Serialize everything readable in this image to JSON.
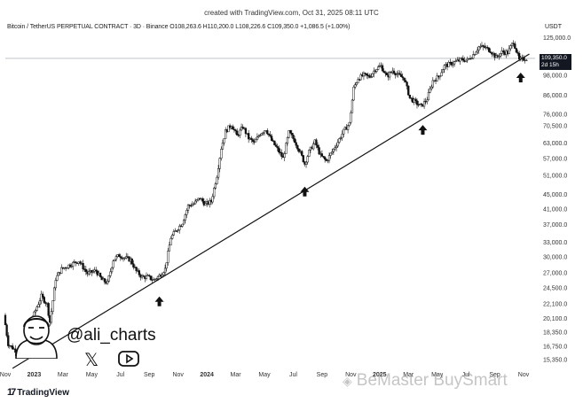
{
  "header": {
    "created": "created with TradingView.com, Oct 31, 2025 08:11 UTC",
    "legend": "Bitcoin / TetherUS PERPETUAL CONTRACT · 3D · Binance  O108,263.6  H110,200.0  L108,226.6  C109,350.0  +1,086.5 (+1.00%)",
    "currency": "USDT"
  },
  "price_tag": {
    "price": "109,350.0",
    "countdown": "2d 15h"
  },
  "branding": {
    "handle": "@ali_charts",
    "footer": "TradingView",
    "watermark": "BeMaster BuySmart",
    "icons": [
      "avatar-icon",
      "x-icon",
      "youtube-icon",
      "tradingview-logo-icon",
      "binance-square-icon",
      "up-arrow-icon"
    ]
  },
  "chart_data": {
    "type": "candlestick",
    "title": "",
    "xlabel": "",
    "ylabel": "",
    "y_scale": "log",
    "ylim": [
      15350,
      127000
    ],
    "y_ticks": [
      125000,
      109350,
      98000,
      86000,
      76000,
      70500,
      63000,
      57000,
      51000,
      45000,
      41000,
      37000,
      33000,
      30000,
      27000,
      24500,
      22100,
      20100,
      18350,
      16750,
      15350
    ],
    "y_tick_labels": [
      "125,000.0",
      "109,350.0",
      "98,000.0",
      "86,000.0",
      "76,000.0",
      "70,500.0",
      "63,000.0",
      "57,000.0",
      "51,000.0",
      "45,000.0",
      "41,000.0",
      "37,000.0",
      "33,000.0",
      "30,000.0",
      "27,000.0",
      "24,500.0",
      "22,100.0",
      "20,100.0",
      "18,350.0",
      "16,750.0",
      "15,350.0"
    ],
    "x_ticks": [
      "Nov",
      "2023",
      "Mar",
      "May",
      "Jul",
      "Sep",
      "Nov",
      "2024",
      "Mar",
      "May",
      "Jul",
      "Sep",
      "Nov",
      "2025",
      "Mar",
      "May",
      "Jul",
      "Sep",
      "Nov"
    ],
    "x_tick_positions": [
      0,
      2,
      4,
      6,
      8,
      10,
      12,
      14,
      16,
      18,
      20,
      22,
      24,
      26,
      28,
      30,
      32,
      34,
      36
    ],
    "price_path": [
      [
        0,
        20500
      ],
      [
        0.3,
        17000
      ],
      [
        0.8,
        16300
      ],
      [
        1.4,
        16600
      ],
      [
        2.0,
        20200
      ],
      [
        2.6,
        23200
      ],
      [
        3.0,
        22000
      ],
      [
        3.2,
        19600
      ],
      [
        3.6,
        26000
      ],
      [
        4.0,
        27700
      ],
      [
        4.6,
        28500
      ],
      [
        5.2,
        29200
      ],
      [
        5.8,
        26900
      ],
      [
        6.4,
        27400
      ],
      [
        6.8,
        25800
      ],
      [
        7.2,
        25300
      ],
      [
        7.6,
        29400
      ],
      [
        8.0,
        30300
      ],
      [
        8.4,
        29800
      ],
      [
        8.8,
        29400
      ],
      [
        9.2,
        27300
      ],
      [
        9.6,
        26300
      ],
      [
        10.0,
        26300
      ],
      [
        10.4,
        25800
      ],
      [
        10.8,
        26500
      ],
      [
        11.2,
        27700
      ],
      [
        11.6,
        34000
      ],
      [
        12.0,
        35800
      ],
      [
        12.4,
        37500
      ],
      [
        12.8,
        41800
      ],
      [
        13.2,
        42400
      ],
      [
        13.6,
        44000
      ],
      [
        14.0,
        42200
      ],
      [
        14.4,
        43000
      ],
      [
        14.8,
        51000
      ],
      [
        15.1,
        61000
      ],
      [
        15.4,
        68000
      ],
      [
        15.8,
        71000
      ],
      [
        16.2,
        66000
      ],
      [
        16.6,
        70000
      ],
      [
        17.0,
        65000
      ],
      [
        17.4,
        63000
      ],
      [
        17.8,
        67000
      ],
      [
        18.2,
        69000
      ],
      [
        18.6,
        64000
      ],
      [
        19.0,
        60500
      ],
      [
        19.4,
        57000
      ],
      [
        19.8,
        67500
      ],
      [
        20.2,
        64000
      ],
      [
        20.6,
        59000
      ],
      [
        20.9,
        55000
      ],
      [
        21.2,
        59500
      ],
      [
        21.6,
        63500
      ],
      [
        22.0,
        58000
      ],
      [
        22.4,
        56000
      ],
      [
        22.8,
        59500
      ],
      [
        23.2,
        63500
      ],
      [
        23.6,
        68000
      ],
      [
        24.0,
        71500
      ],
      [
        24.3,
        90000
      ],
      [
        24.6,
        96000
      ],
      [
        25.0,
        98000
      ],
      [
        25.4,
        97000
      ],
      [
        25.8,
        102000
      ],
      [
        26.2,
        104000
      ],
      [
        26.6,
        97000
      ],
      [
        27.0,
        101000
      ],
      [
        27.4,
        98000
      ],
      [
        27.8,
        96000
      ],
      [
        28.2,
        84500
      ],
      [
        28.6,
        82000
      ],
      [
        29.0,
        80000
      ],
      [
        29.4,
        84000
      ],
      [
        29.8,
        94500
      ],
      [
        30.2,
        97000
      ],
      [
        30.6,
        104000
      ],
      [
        31.0,
        105500
      ],
      [
        31.4,
        107000
      ],
      [
        31.8,
        108500
      ],
      [
        32.2,
        108000
      ],
      [
        32.6,
        112000
      ],
      [
        33.0,
        118000
      ],
      [
        33.4,
        117500
      ],
      [
        33.8,
        115000
      ],
      [
        34.2,
        110000
      ],
      [
        34.6,
        114000
      ],
      [
        35.0,
        113500
      ],
      [
        35.4,
        122000
      ],
      [
        35.8,
        108000
      ],
      [
        36.2,
        109350
      ]
    ],
    "trendline": [
      [
        0.5,
        14500
      ],
      [
        36.4,
        112500
      ]
    ],
    "last_price": 109350,
    "annotations": [
      {
        "type": "arrow-up",
        "x": 10.7,
        "y": 23700
      },
      {
        "type": "arrow-up",
        "x": 20.8,
        "y": 48500
      },
      {
        "type": "arrow-up",
        "x": 29.0,
        "y": 72500
      },
      {
        "type": "arrow-up",
        "x": 35.8,
        "y": 102000
      }
    ],
    "legend_position": "top-left",
    "grid": false
  }
}
